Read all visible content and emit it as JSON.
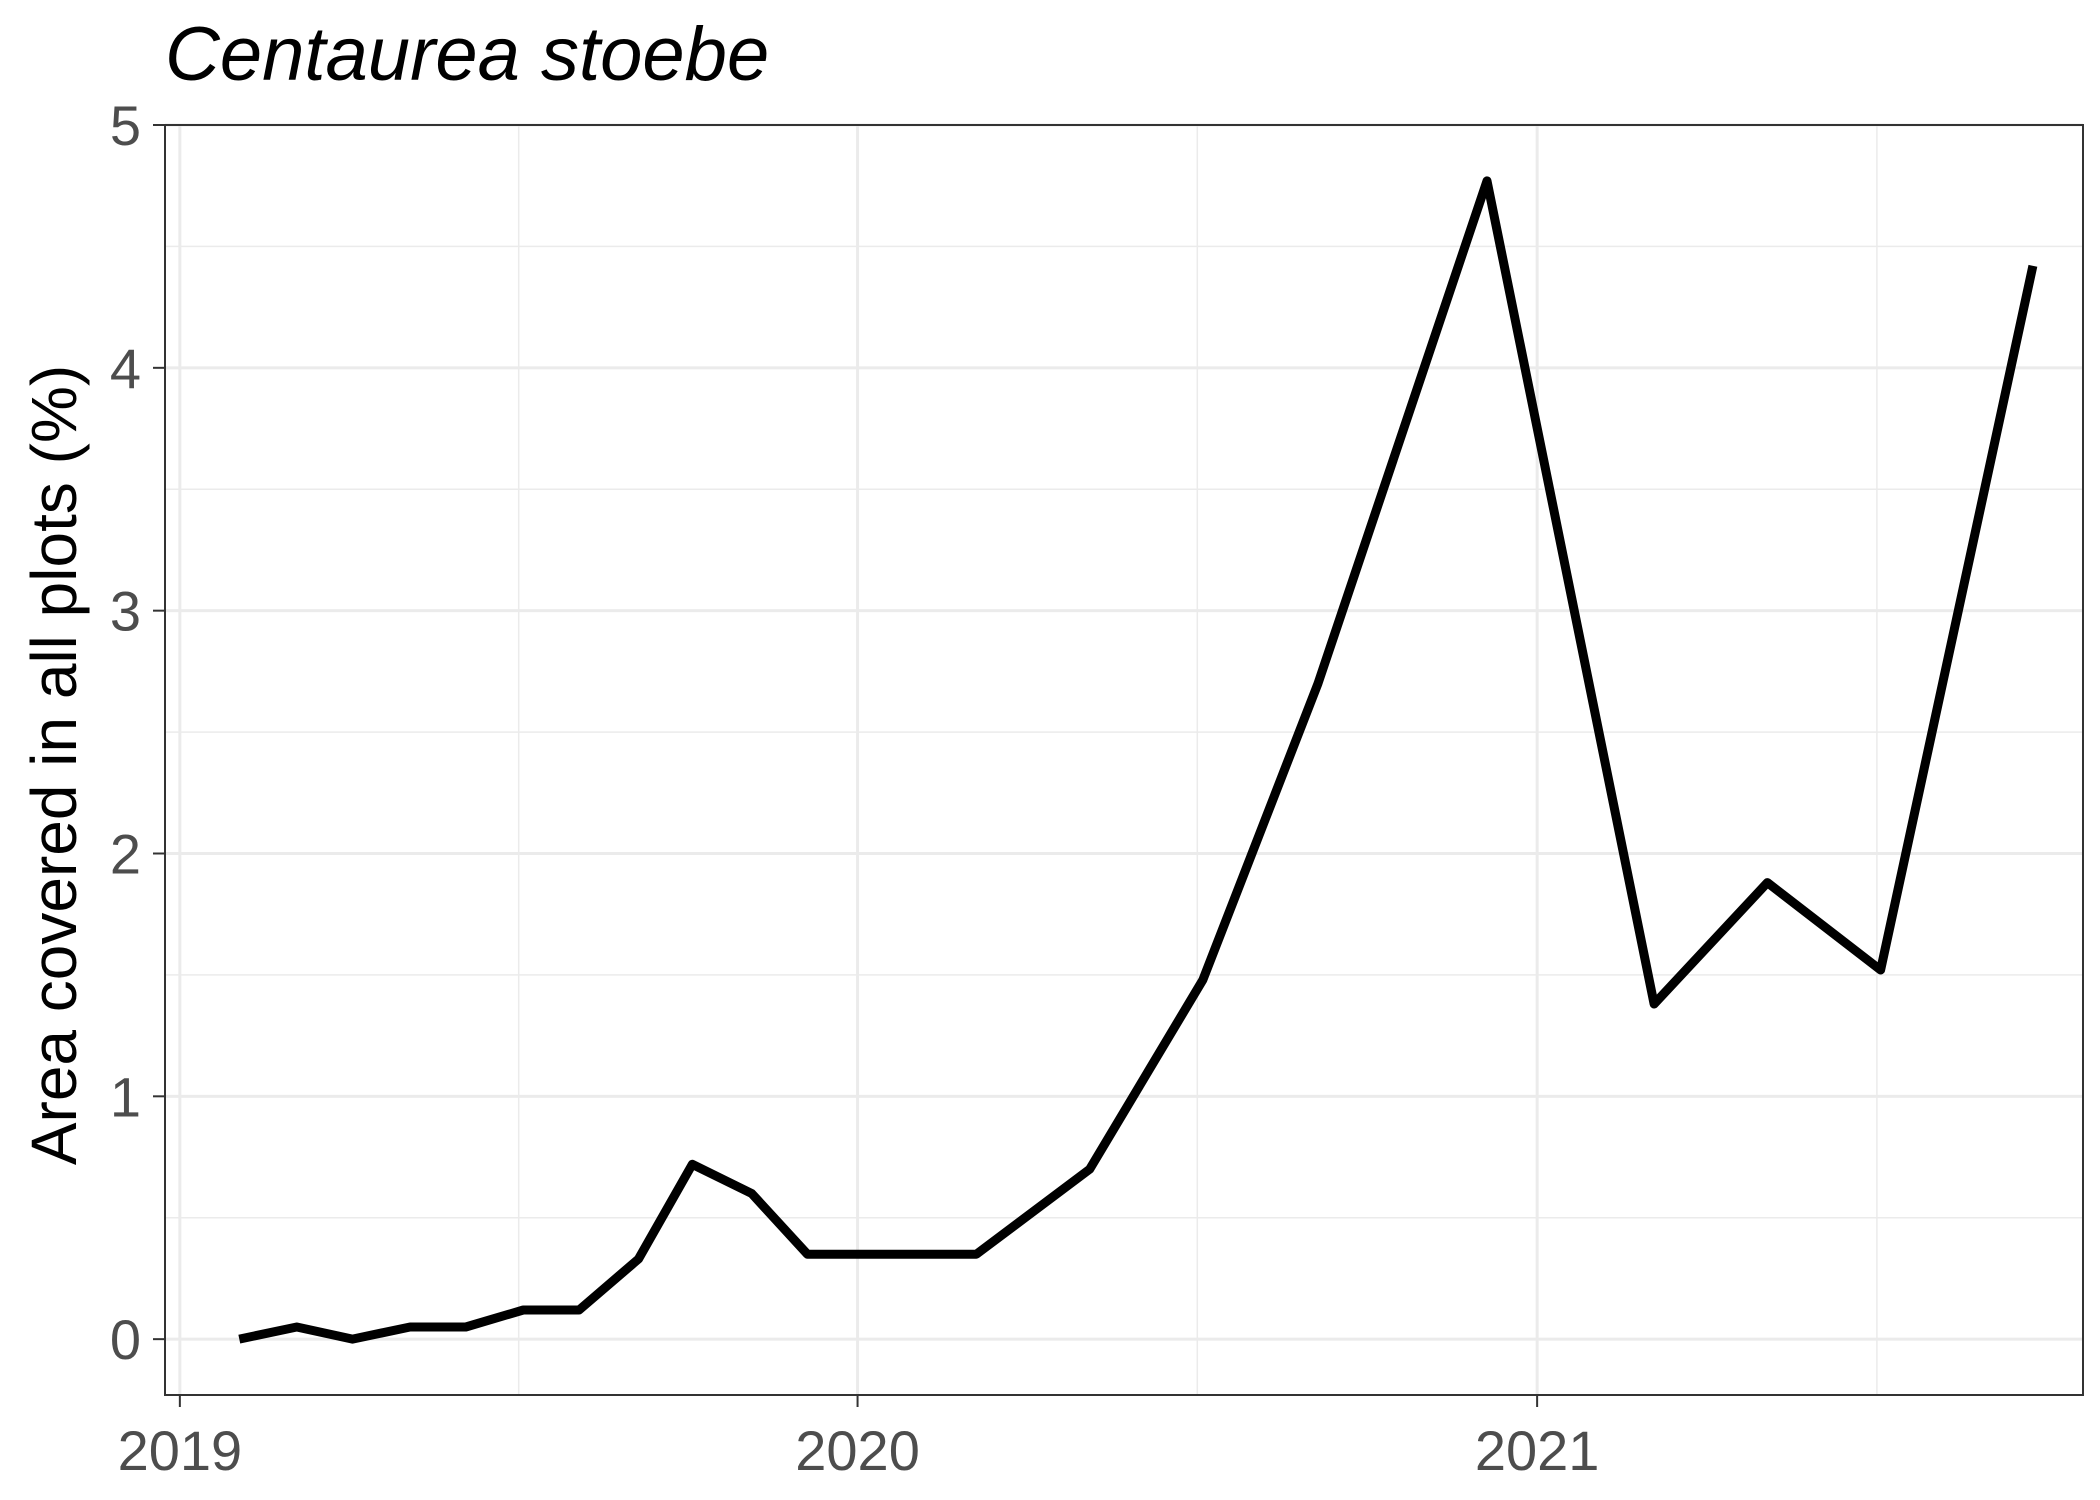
{
  "chart_data": {
    "type": "line",
    "title": "Centaurea stoebe",
    "xlabel": "",
    "ylabel": "Area covered in all plots (%)",
    "xlim": [
      "2018-12-24",
      "2021-10-22"
    ],
    "ylim": [
      -0.23,
      5
    ],
    "y_ticks": [
      0,
      1,
      2,
      3,
      4,
      5
    ],
    "x_ticks": [
      {
        "date": "2019-01-01",
        "label": "2019"
      },
      {
        "date": "2020-01-01",
        "label": "2020"
      },
      {
        "date": "2021-01-01",
        "label": "2021"
      }
    ],
    "grid": true,
    "legend": "none",
    "colors": {
      "line": "#000000",
      "grid": "#ebebeb",
      "panel_border": "#333333",
      "tick_text": "#4d4d4d"
    },
    "series": [
      {
        "color": "#000000",
        "x": [
          "2019-02-02",
          "2019-03-05",
          "2019-04-04",
          "2019-05-05",
          "2019-06-04",
          "2019-07-05",
          "2019-08-04",
          "2019-09-05",
          "2019-10-04",
          "2019-11-05",
          "2019-12-05",
          "2020-03-05",
          "2020-05-05",
          "2020-07-05",
          "2020-09-05",
          "2020-12-05",
          "2021-03-05",
          "2021-05-05",
          "2021-07-05",
          "2021-09-25"
        ],
        "y": [
          0.0,
          0.05,
          0.0,
          0.05,
          0.05,
          0.12,
          0.12,
          0.33,
          0.72,
          0.6,
          0.35,
          0.35,
          0.7,
          1.48,
          2.7,
          4.77,
          1.38,
          1.88,
          1.52,
          4.42
        ]
      }
    ]
  }
}
